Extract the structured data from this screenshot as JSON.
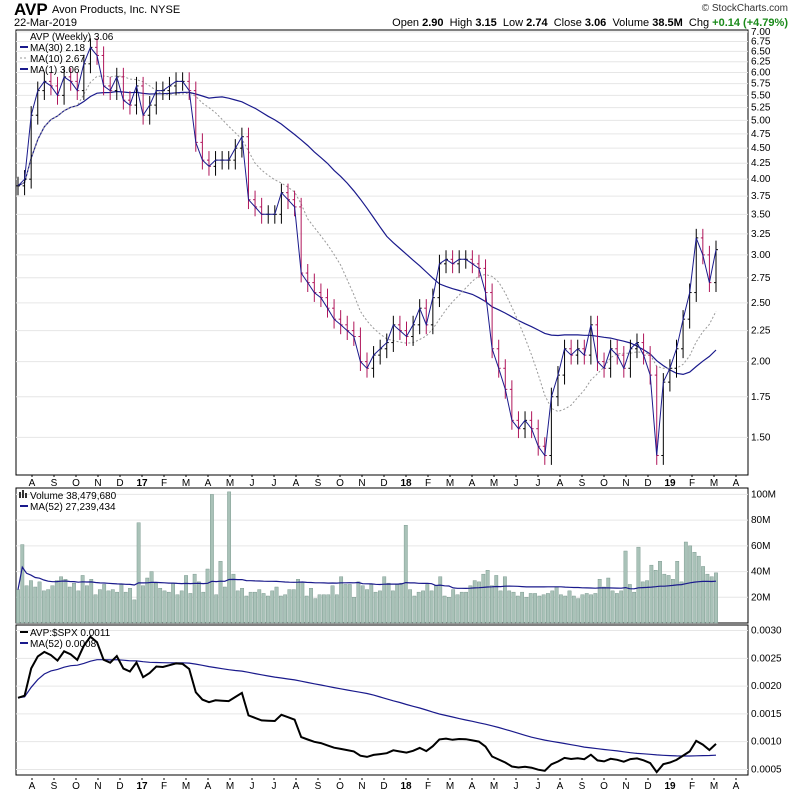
{
  "header": {
    "symbol": "AVP",
    "company": "Avon Products, Inc.  NYSE",
    "brand": "© StockCharts.com",
    "date": "22-Mar-2019",
    "open_label": "Open",
    "open": "2.90",
    "high_label": "High",
    "high": "3.15",
    "low_label": "Low",
    "low": "2.74",
    "close_label": "Close",
    "close": "3.06",
    "volume_label": "Volume",
    "volume": "38.5M",
    "chg_label": "Chg",
    "chg": "+0.14 (+4.79%)",
    "chg_color": "#1a8a1a"
  },
  "legends": {
    "price": "AVP (Weekly) 3.06",
    "ma30": "MA(30) 2.18",
    "ma10": "MA(10) 2.67",
    "ma1": "MA(1) 3.06",
    "volume": "Volume 38,479,680",
    "vol_ma": "MA(52) 27,239,434",
    "ratio": "AVP:$SPX 0.0011",
    "ratio_ma": "MA(52) 0.0008"
  },
  "colors": {
    "up": "#000000",
    "down": "#b0155a",
    "ma30": "#1a1a8c",
    "ma10": "#999999",
    "volume": "#a9c2b8",
    "volume_edge": "#6f8f84",
    "grid": "#e6e6e6"
  },
  "x_axis": {
    "labels": [
      "A",
      "S",
      "O",
      "N",
      "D",
      "17",
      "F",
      "M",
      "A",
      "M",
      "J",
      "J",
      "A",
      "S",
      "O",
      "N",
      "D",
      "18",
      "F",
      "M",
      "A",
      "M",
      "J",
      "J",
      "A",
      "S",
      "O",
      "N",
      "D",
      "19",
      "F",
      "M",
      "A"
    ],
    "bold": [
      "17",
      "18",
      "19"
    ]
  },
  "price_axis": {
    "ticks": [
      1.5,
      1.75,
      2.0,
      2.25,
      2.5,
      2.75,
      3.0,
      3.25,
      3.5,
      3.75,
      4.0,
      4.25,
      4.5,
      4.75,
      5.0,
      5.25,
      5.5,
      5.75,
      6.0,
      6.25,
      6.5,
      6.75,
      7.0
    ],
    "labels": [
      "1.50",
      "1.75",
      "2.00",
      "2.25",
      "2.50",
      "2.75",
      "3.00",
      "3.25",
      "3.50",
      "3.75",
      "4.00",
      "4.25",
      "4.50",
      "4.75",
      "5.00",
      "5.25",
      "5.50",
      "5.75",
      "6.00",
      "6.25",
      "6.50",
      "6.75",
      "7.00"
    ],
    "scale": "log",
    "ylim": [
      1.3,
      7.05
    ]
  },
  "volume_axis": {
    "ticks": [
      20,
      40,
      60,
      80,
      100
    ],
    "labels": [
      "20M",
      "40M",
      "60M",
      "80M",
      "100M"
    ],
    "ylim": [
      0,
      105
    ]
  },
  "ratio_axis": {
    "ticks": [
      0.0005,
      0.001,
      0.0015,
      0.002,
      0.0025,
      0.003
    ],
    "labels": [
      "0.0005",
      "0.0010",
      "0.0015",
      "0.0020",
      "0.0025",
      "0.0030"
    ],
    "ylim": [
      0.0004,
      0.0031
    ]
  },
  "chart_data": {
    "type": "line",
    "title": "AVP (Weekly)",
    "x": "weekly, Aug 2016 – Mar 2019",
    "series": [
      {
        "name": "AVP (Weekly)",
        "values": [
          3.9,
          4.0,
          5.1,
          5.6,
          5.8,
          5.7,
          5.5,
          5.9,
          5.8,
          5.6,
          6.2,
          6.6,
          6.4,
          5.7,
          5.6,
          5.9,
          5.4,
          5.3,
          5.7,
          5.1,
          5.3,
          5.6,
          5.6,
          5.7,
          5.8,
          5.8,
          5.6,
          4.6,
          4.3,
          4.2,
          4.3,
          4.3,
          4.3,
          4.5,
          4.7,
          3.7,
          3.6,
          3.5,
          3.5,
          3.5,
          3.8,
          3.7,
          3.6,
          2.8,
          2.7,
          2.6,
          2.55,
          2.45,
          2.35,
          2.3,
          2.25,
          2.2,
          2.0,
          1.95,
          2.05,
          2.1,
          2.15,
          2.3,
          2.25,
          2.2,
          2.3,
          2.45,
          2.3,
          2.55,
          2.9,
          2.95,
          2.9,
          2.95,
          2.95,
          2.9,
          2.85,
          2.6,
          2.1,
          1.95,
          1.8,
          1.6,
          1.55,
          1.6,
          1.55,
          1.45,
          1.4,
          1.75,
          1.9,
          2.1,
          2.05,
          2.1,
          2.05,
          2.3,
          2.0,
          1.95,
          2.1,
          2.05,
          1.95,
          2.1,
          2.15,
          2.05,
          1.9,
          1.4,
          1.85,
          1.95,
          2.1,
          2.35,
          2.6,
          3.2,
          3.0,
          2.7,
          3.06
        ]
      },
      {
        "name": "MA(30)",
        "values": []
      },
      {
        "name": "MA(10)",
        "values": []
      }
    ],
    "volume": [
      26,
      61,
      29,
      33,
      28,
      32,
      25,
      26,
      29,
      33,
      36,
      34,
      28,
      31,
      25,
      37,
      29,
      34,
      22,
      26,
      30,
      25,
      26,
      24,
      30,
      24,
      27,
      18,
      78,
      29,
      35,
      40,
      31,
      27,
      25,
      24,
      31,
      22,
      25,
      37,
      23,
      38,
      32,
      24,
      42,
      100,
      22,
      48,
      28,
      102,
      38,
      25,
      27,
      21,
      24,
      24,
      26,
      23,
      21,
      25,
      28,
      21,
      22,
      26,
      26,
      34,
      32,
      21,
      27,
      19,
      22,
      22,
      22,
      29,
      22,
      36,
      30,
      30,
      20,
      32,
      29,
      26,
      30,
      24,
      25,
      36,
      31,
      25,
      30,
      31,
      76,
      26,
      21,
      24,
      25,
      30,
      25,
      29,
      36,
      21,
      20,
      26,
      22,
      24,
      24,
      29,
      33,
      32,
      38,
      41,
      29,
      37,
      25,
      36,
      25,
      24,
      21,
      24,
      20,
      23,
      23,
      21,
      22,
      23,
      25,
      28,
      22,
      21,
      25,
      21,
      19,
      22,
      23,
      22,
      23,
      34,
      28,
      35,
      25,
      23,
      25,
      56,
      30,
      24,
      59,
      32,
      33,
      45,
      41,
      48,
      38,
      37,
      34,
      48,
      32,
      63,
      60,
      55,
      52,
      44,
      38,
      36,
      39
    ]
  }
}
